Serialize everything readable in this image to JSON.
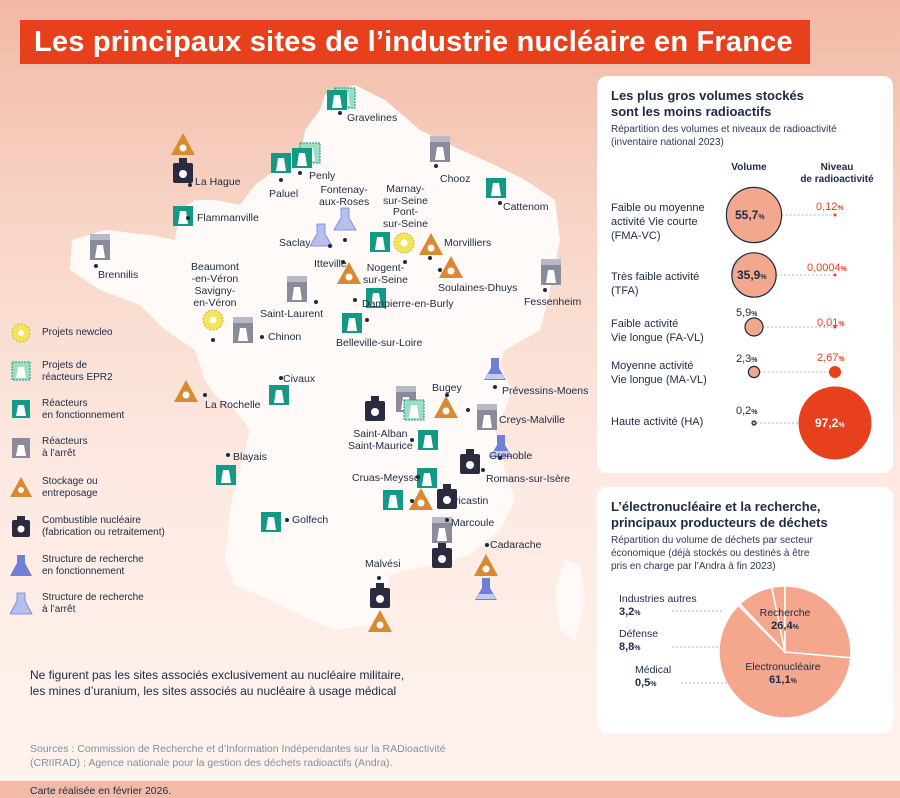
{
  "title": "Les principaux sites de l’industrie nucléaire en France",
  "colors": {
    "accent": "#e8401d",
    "reactor_active": "#129a86",
    "reactor_stopped": "#8a8a9a",
    "storage": "#d98a30",
    "fuel": "#2b2b40",
    "research_active": "#6f7fd8",
    "research_stopped": "#b6c0ee",
    "newcleo": "#f3e45a",
    "epr2": "#9fdcc4"
  },
  "legend": [
    {
      "icon": "newcleo-icon",
      "label": "Projets newcleo"
    },
    {
      "icon": "epr2-reactor-project-icon",
      "label": "Projets de\nréacteurs EPR2"
    },
    {
      "icon": "reactor-active-icon",
      "label": "Réacteurs\nen fonctionnement"
    },
    {
      "icon": "reactor-stopped-icon",
      "label": "Réacteurs\nà l’arrêt"
    },
    {
      "icon": "storage-icon",
      "label": "Stockage ou\nentreposage"
    },
    {
      "icon": "fuel-icon",
      "label": "Combustible nucléaire\n(fabrication ou retraitement)"
    },
    {
      "icon": "research-active-icon",
      "label": "Structure de recherche\nen fonctionnement"
    },
    {
      "icon": "research-stopped-icon",
      "label": "Structure de recherche\nà l’arrêt"
    }
  ],
  "sites": [
    {
      "name": "Gravelines"
    },
    {
      "name": "La Hague"
    },
    {
      "name": "Flammanville"
    },
    {
      "name": "Paluel"
    },
    {
      "name": "Penly"
    },
    {
      "name": "Chooz"
    },
    {
      "name": "Cattenom"
    },
    {
      "name": "Fontenay-\naux-Roses"
    },
    {
      "name": "Marnay-\nsur-Seine\nPont-\nsur-Seine"
    },
    {
      "name": "Saclay"
    },
    {
      "name": "Itteville"
    },
    {
      "name": "Nogent-\nsur-Seine"
    },
    {
      "name": "Morvilliers"
    },
    {
      "name": "Soulaines-Dhuys"
    },
    {
      "name": "Brennilis"
    },
    {
      "name": "Fessenheim"
    },
    {
      "name": "Beaumont\n-en-Véron\nSavigny-\nen-Véron"
    },
    {
      "name": "Saint-Laurent"
    },
    {
      "name": "Dampierre-en-Burly"
    },
    {
      "name": "Chinon"
    },
    {
      "name": "Belleville-sur-Loire"
    },
    {
      "name": "Prévessins-Moens"
    },
    {
      "name": "Civaux"
    },
    {
      "name": "La Rochelle"
    },
    {
      "name": "Bugey"
    },
    {
      "name": "Creys-Malville"
    },
    {
      "name": "Saint-Alban\nSaint-Maurice"
    },
    {
      "name": "Grenoble"
    },
    {
      "name": "Blayais"
    },
    {
      "name": "Romans-sur-Isère"
    },
    {
      "name": "Cruas-Meysse"
    },
    {
      "name": "Tricastin"
    },
    {
      "name": "Golfech"
    },
    {
      "name": "Marcoule"
    },
    {
      "name": "Cadarache"
    },
    {
      "name": "Malvési"
    }
  ],
  "note": "Ne figurent pas les sites associés exclusivement au nucléaire militaire,\nles mines d’uranium, les sites associés au nucléaire à usage médical",
  "sources": "Sources : Commission de Recherche et d’Information Indépendantes sur la RADioactivité\n(CRIIRAD) ; Agence nationale pour la gestion des déchets radioactifs (Andra).",
  "date": "Carte réalisée en février 2026.",
  "panel1": {
    "title": "Les plus gros volumes stockés\nsont les moins radioactifs",
    "subtitle": "Répartition des volumes et niveaux de radioactivité\n(inventaire national 2023)",
    "col_volume": "Volume",
    "col_level": "Niveau\nde radioactivité",
    "rows": [
      {
        "label": "Faible ou moyenne\nactivité Vie courte\n(FMA-VC)",
        "volume": "55,7",
        "volume_value": 55.7,
        "level": "0,12",
        "level_value": 0.12
      },
      {
        "label": "Très faible activité\n(TFA)",
        "volume": "35,9",
        "volume_value": 35.9,
        "level": "0,0004",
        "level_value": 0.0004
      },
      {
        "label": "Faible activité\nVie longue (FA-VL)",
        "volume": "5,9",
        "volume_value": 5.9,
        "level": "0,01",
        "level_value": 0.01
      },
      {
        "label": "Moyenne activité\nVie longue (MA-VL)",
        "volume": "2,3",
        "volume_value": 2.3,
        "level": "2,67",
        "level_value": 2.67
      },
      {
        "label": "Haute activité (HA)",
        "volume": "0,2",
        "volume_value": 0.2,
        "level": "97,2",
        "level_value": 97.2
      }
    ],
    "unit": "%"
  },
  "panel2": {
    "title": "L’électronucléaire et la recherche,\nprincipaux producteurs de déchets",
    "subtitle": "Répartition du volume de déchets par secteur\néconomique (déjà stockés ou destinés à être\npris en charge par l’Andra à fin 2023)",
    "unit": "%",
    "slices": [
      {
        "label": "Electronucléaire",
        "value_text": "61,1",
        "value": 61.1
      },
      {
        "label": "Recherche",
        "value_text": "26,4",
        "value": 26.4
      },
      {
        "label": "Industries autres",
        "value_text": "3,2",
        "value": 3.2
      },
      {
        "label": "Défense",
        "value_text": "8,8",
        "value": 8.8
      },
      {
        "label": "Médical",
        "value_text": "0,5",
        "value": 0.5
      }
    ]
  },
  "chart_data": {
    "type": "pie",
    "title": "L’électronucléaire et la recherche, principaux producteurs de déchets",
    "categories": [
      "Electronucléaire",
      "Recherche",
      "Industries autres",
      "Défense",
      "Médical"
    ],
    "values": [
      61.1,
      26.4,
      3.2,
      8.8,
      0.5
    ]
  }
}
